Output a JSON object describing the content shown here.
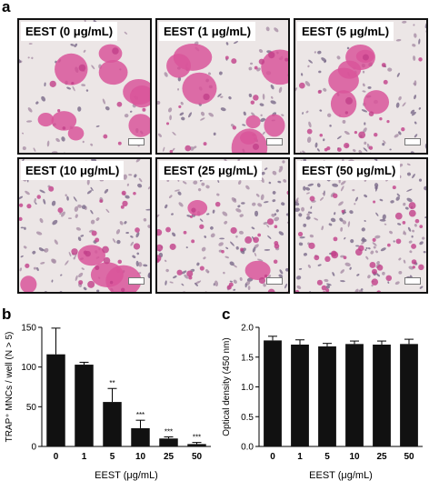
{
  "panel_letters": {
    "a": "a",
    "b": "b",
    "c": "c"
  },
  "micrographs": [
    {
      "label": "EEST (0 μg/mL)"
    },
    {
      "label": "EEST (1 μg/mL)"
    },
    {
      "label": "EEST (5 μg/mL)"
    },
    {
      "label": "EEST (10 μg/mL)"
    },
    {
      "label": "EEST (25 μg/mL)"
    },
    {
      "label": "EEST (50 μg/mL)"
    }
  ],
  "colors": {
    "stain_pink": "#d9559a",
    "bar_fill": "#111111",
    "background_cell": "#ece6e6"
  },
  "chart_data": [
    {
      "type": "bar",
      "categories": [
        "0",
        "1",
        "5",
        "10",
        "25",
        "50"
      ],
      "values": [
        116,
        103,
        56,
        23,
        10,
        3
      ],
      "errors": [
        33,
        3,
        17,
        10,
        2,
        2
      ],
      "significance": [
        "",
        "",
        "**",
        "***",
        "***",
        "***"
      ],
      "xlabel": "EEST (μg/mL)",
      "ylabel": "TRAP⁺ MNCs / well (N > 5)",
      "ylim": [
        0,
        150
      ],
      "yticks": [
        "0",
        "50",
        "100",
        "150"
      ]
    },
    {
      "type": "bar",
      "categories": [
        "0",
        "1",
        "5",
        "10",
        "25",
        "50"
      ],
      "values": [
        1.78,
        1.71,
        1.68,
        1.72,
        1.71,
        1.72
      ],
      "errors": [
        0.07,
        0.08,
        0.05,
        0.05,
        0.06,
        0.08
      ],
      "significance": [
        "",
        "",
        "",
        "",
        "",
        ""
      ],
      "xlabel": "EEST (μg/mL)",
      "ylabel": "Optical density (450 nm)",
      "ylim": [
        0,
        2.0
      ],
      "yticks": [
        "0.0",
        "0.5",
        "1.0",
        "1.5",
        "2.0"
      ]
    }
  ]
}
